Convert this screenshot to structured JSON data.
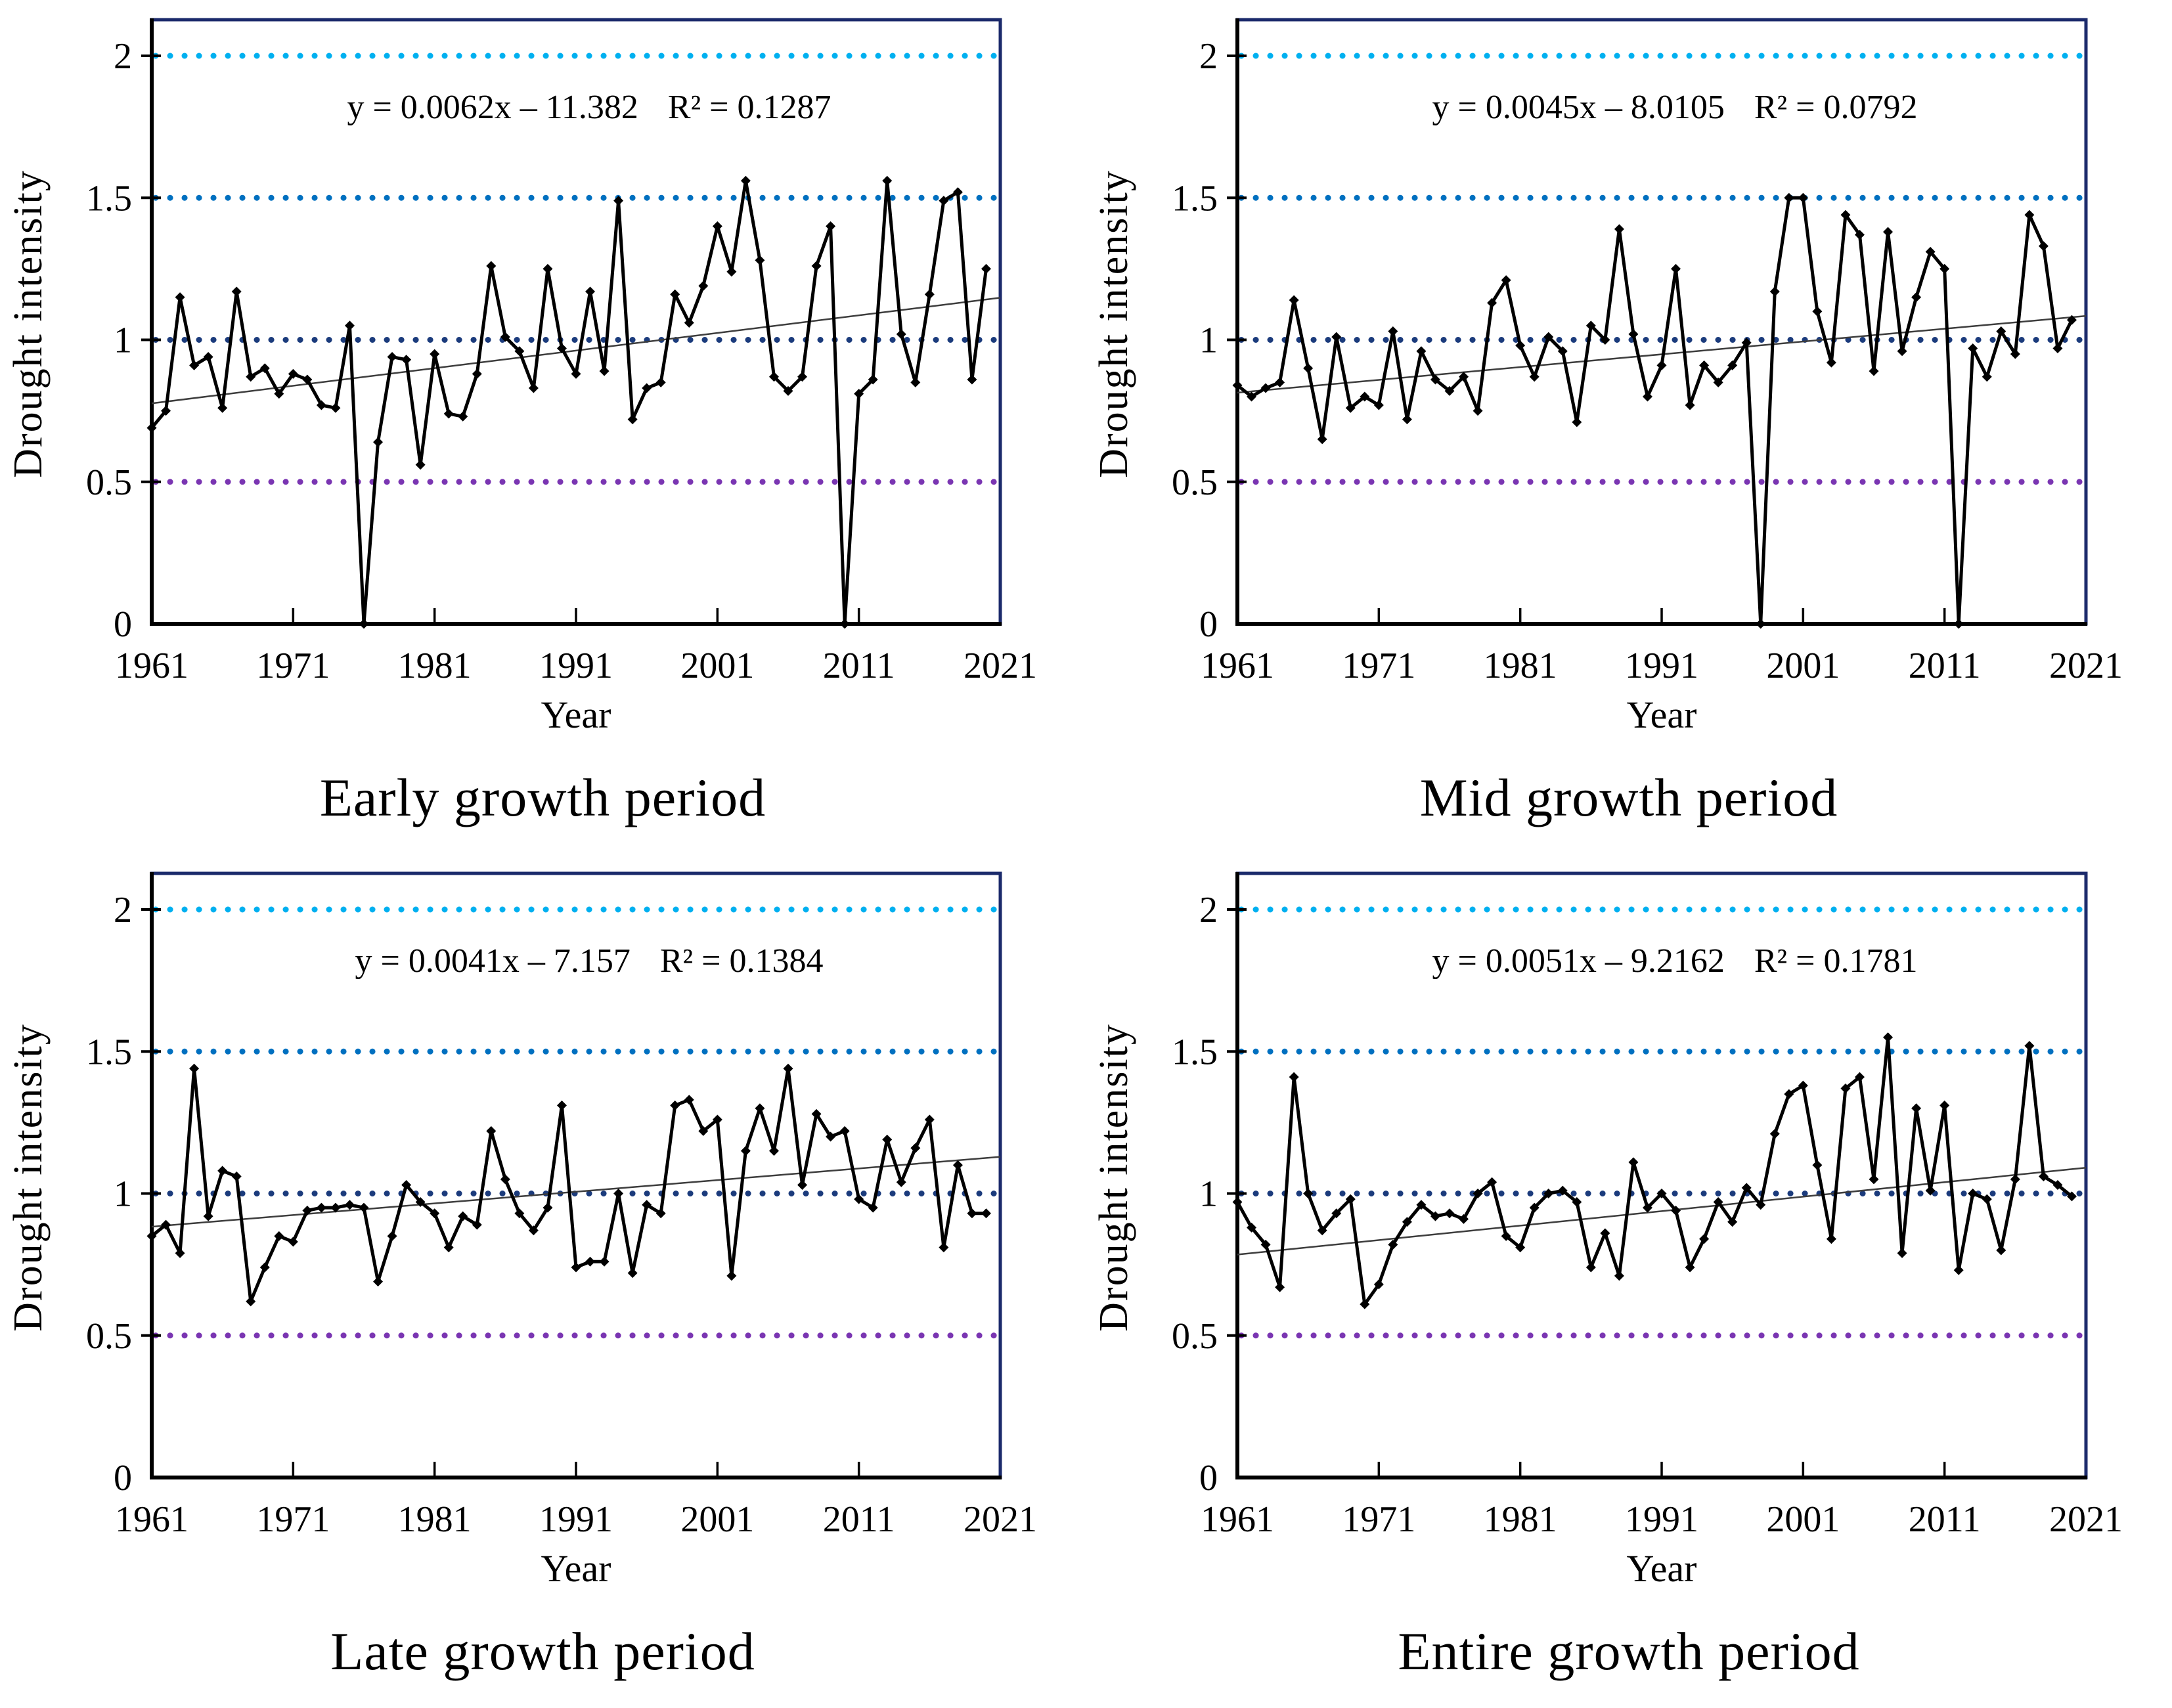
{
  "figure": {
    "background": "#ffffff",
    "x_axis_label": "Year",
    "y_axis_label": "Drought intensity",
    "x_ticks": [
      "1961",
      "1971",
      "1981",
      "1991",
      "2001",
      "2011",
      "2021"
    ],
    "y_ticks": [
      "0",
      "0.5",
      "1",
      "1.5",
      "2"
    ],
    "x_range": [
      1961,
      2021
    ],
    "y_range": [
      0,
      2
    ],
    "grid": "dotted horizontal reference lines only",
    "legend_position": "none"
  },
  "reference_lines": [
    {
      "value": 2.0,
      "color": "#00b0f0"
    },
    {
      "value": 1.5,
      "color": "#0070c0"
    },
    {
      "value": 1.0,
      "color": "#1b3b7c"
    },
    {
      "value": 0.5,
      "color": "#7a35b2"
    }
  ],
  "style_colors": {
    "plot_border": "#1b2a6b",
    "axis_line": "#000000",
    "series_line": "#000000",
    "marker": "#000000",
    "trend_line": "#3d3d3d"
  },
  "chart_data": [
    {
      "type": "line",
      "title": "Early growth period",
      "equation": "y = 0.0062x – 11.382",
      "r2_label": "R² = 0.1287",
      "slope": 0.0062,
      "intercept": -11.382,
      "r2": 0.1287,
      "x_start": 1961,
      "xlabel": "Year",
      "ylabel": "Drought intensity",
      "values": [
        0.69,
        0.75,
        1.15,
        0.91,
        0.94,
        0.76,
        1.17,
        0.87,
        0.9,
        0.81,
        0.88,
        0.86,
        0.77,
        0.76,
        1.05,
        0.0,
        0.64,
        0.94,
        0.93,
        0.56,
        0.95,
        0.74,
        0.73,
        0.88,
        1.26,
        1.01,
        0.96,
        0.83,
        1.25,
        0.97,
        0.88,
        1.17,
        0.89,
        1.49,
        0.72,
        0.83,
        0.85,
        1.16,
        1.06,
        1.19,
        1.4,
        1.24,
        1.56,
        1.28,
        0.87,
        0.82,
        0.87,
        1.26,
        1.4,
        0.0,
        0.81,
        0.86,
        1.56,
        1.02,
        0.85,
        1.16,
        1.49,
        1.52,
        0.86,
        1.25
      ]
    },
    {
      "type": "line",
      "title": "Mid growth period",
      "equation": "y = 0.0045x – 8.0105",
      "r2_label": "R² = 0.0792",
      "slope": 0.0045,
      "intercept": -8.0105,
      "r2": 0.0792,
      "x_start": 1961,
      "xlabel": "Year",
      "ylabel": "Drought intensity",
      "values": [
        0.84,
        0.8,
        0.83,
        0.85,
        1.14,
        0.9,
        0.65,
        1.01,
        0.76,
        0.8,
        0.77,
        1.03,
        0.72,
        0.96,
        0.86,
        0.82,
        0.87,
        0.75,
        1.13,
        1.21,
        0.98,
        0.87,
        1.01,
        0.96,
        0.71,
        1.05,
        1.0,
        1.39,
        1.02,
        0.8,
        0.91,
        1.25,
        0.77,
        0.91,
        0.85,
        0.91,
        0.99,
        0.0,
        1.17,
        1.5,
        1.5,
        1.1,
        0.92,
        1.44,
        1.37,
        0.89,
        1.38,
        0.96,
        1.15,
        1.31,
        1.25,
        0.0,
        0.97,
        0.87,
        1.03,
        0.95,
        1.44,
        1.33,
        0.97,
        1.07
      ]
    },
    {
      "type": "line",
      "title": "Late growth period",
      "equation": "y = 0.0041x – 7.157",
      "r2_label": "R² = 0.1384",
      "slope": 0.0041,
      "intercept": -7.157,
      "r2": 0.1384,
      "x_start": 1961,
      "xlabel": "Year",
      "ylabel": "Drought intensity",
      "values": [
        0.85,
        0.89,
        0.79,
        1.44,
        0.92,
        1.08,
        1.06,
        0.62,
        0.74,
        0.85,
        0.83,
        0.94,
        0.95,
        0.95,
        0.96,
        0.95,
        0.69,
        0.85,
        1.03,
        0.97,
        0.93,
        0.81,
        0.92,
        0.89,
        1.22,
        1.05,
        0.93,
        0.87,
        0.95,
        1.31,
        0.74,
        0.76,
        0.76,
        1.0,
        0.72,
        0.96,
        0.93,
        1.31,
        1.33,
        1.22,
        1.26,
        0.71,
        1.15,
        1.3,
        1.15,
        1.44,
        1.03,
        1.28,
        1.2,
        1.22,
        0.98,
        0.95,
        1.19,
        1.04,
        1.16,
        1.26,
        0.81,
        1.1,
        0.93,
        0.93
      ]
    },
    {
      "type": "line",
      "title": "Entire growth period",
      "equation": "y = 0.0051x – 9.2162",
      "r2_label": "R² = 0.1781",
      "slope": 0.0051,
      "intercept": -9.2162,
      "r2": 0.1781,
      "x_start": 1961,
      "xlabel": "Year",
      "ylabel": "Drought intensity",
      "values": [
        0.97,
        0.88,
        0.82,
        0.67,
        1.41,
        1.0,
        0.87,
        0.93,
        0.98,
        0.61,
        0.68,
        0.82,
        0.9,
        0.96,
        0.92,
        0.93,
        0.91,
        1.0,
        1.04,
        0.85,
        0.81,
        0.95,
        1.0,
        1.01,
        0.97,
        0.74,
        0.86,
        0.71,
        1.11,
        0.95,
        1.0,
        0.94,
        0.74,
        0.84,
        0.97,
        0.9,
        1.02,
        0.96,
        1.21,
        1.35,
        1.38,
        1.1,
        0.84,
        1.37,
        1.41,
        1.05,
        1.55,
        0.79,
        1.3,
        1.01,
        1.31,
        0.73,
        1.0,
        0.98,
        0.8,
        1.05,
        1.52,
        1.06,
        1.03,
        0.99
      ]
    }
  ]
}
